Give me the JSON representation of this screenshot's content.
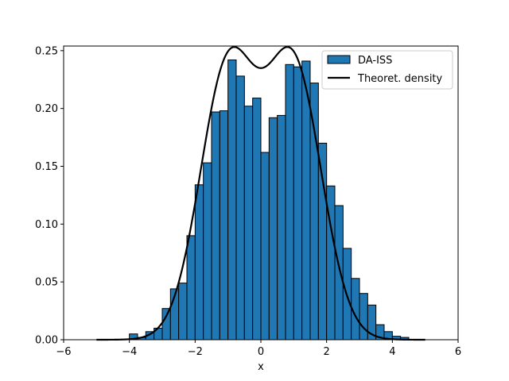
{
  "chart_data": {
    "type": "bar",
    "xlabel": "x",
    "ylabel": "",
    "xlim": [
      -6,
      6
    ],
    "ylim": [
      0,
      0.254
    ],
    "xticks": [
      -6,
      -4,
      -2,
      0,
      2,
      4,
      6
    ],
    "xtick_labels": [
      "−6",
      "−4",
      "−2",
      "0",
      "2",
      "4",
      "6"
    ],
    "yticks": [
      0.0,
      0.05,
      0.1,
      0.15,
      0.2,
      0.25
    ],
    "ytick_labels": [
      "0.00",
      "0.05",
      "0.10",
      "0.15",
      "0.20",
      "0.25"
    ],
    "grid": false,
    "legend": {
      "placement": "top-right",
      "entries": [
        "DA-ISS",
        "Theoret. density"
      ]
    },
    "series": [
      {
        "name": "DA-ISS",
        "kind": "histogram",
        "color": "#1f77b4",
        "edge_color": "#000000",
        "bins": [
          {
            "x0": -4.0,
            "x1": -3.75,
            "value": 0.005
          },
          {
            "x0": -3.75,
            "x1": -3.5,
            "value": 0.002
          },
          {
            "x0": -3.5,
            "x1": -3.25,
            "value": 0.007
          },
          {
            "x0": -3.25,
            "x1": -3.0,
            "value": 0.01
          },
          {
            "x0": -3.0,
            "x1": -2.75,
            "value": 0.027
          },
          {
            "x0": -2.75,
            "x1": -2.5,
            "value": 0.044
          },
          {
            "x0": -2.5,
            "x1": -2.25,
            "value": 0.049
          },
          {
            "x0": -2.25,
            "x1": -2.0,
            "value": 0.09
          },
          {
            "x0": -2.0,
            "x1": -1.75,
            "value": 0.134
          },
          {
            "x0": -1.75,
            "x1": -1.5,
            "value": 0.153
          },
          {
            "x0": -1.5,
            "x1": -1.25,
            "value": 0.197
          },
          {
            "x0": -1.25,
            "x1": -1.0,
            "value": 0.198
          },
          {
            "x0": -1.0,
            "x1": -0.75,
            "value": 0.242
          },
          {
            "x0": -0.75,
            "x1": -0.5,
            "value": 0.228
          },
          {
            "x0": -0.5,
            "x1": -0.25,
            "value": 0.202
          },
          {
            "x0": -0.25,
            "x1": 0.0,
            "value": 0.209
          },
          {
            "x0": 0.0,
            "x1": 0.25,
            "value": 0.162
          },
          {
            "x0": 0.25,
            "x1": 0.5,
            "value": 0.192
          },
          {
            "x0": 0.5,
            "x1": 0.75,
            "value": 0.194
          },
          {
            "x0": 0.75,
            "x1": 1.0,
            "value": 0.238
          },
          {
            "x0": 1.0,
            "x1": 1.25,
            "value": 0.236
          },
          {
            "x0": 1.25,
            "x1": 1.5,
            "value": 0.241
          },
          {
            "x0": 1.5,
            "x1": 1.75,
            "value": 0.222
          },
          {
            "x0": 1.75,
            "x1": 2.0,
            "value": 0.17
          },
          {
            "x0": 2.0,
            "x1": 2.25,
            "value": 0.133
          },
          {
            "x0": 2.25,
            "x1": 2.5,
            "value": 0.116
          },
          {
            "x0": 2.5,
            "x1": 2.75,
            "value": 0.079
          },
          {
            "x0": 2.75,
            "x1": 3.0,
            "value": 0.053
          },
          {
            "x0": 3.0,
            "x1": 3.25,
            "value": 0.04
          },
          {
            "x0": 3.25,
            "x1": 3.5,
            "value": 0.03
          },
          {
            "x0": 3.5,
            "x1": 3.75,
            "value": 0.013
          },
          {
            "x0": 3.75,
            "x1": 4.0,
            "value": 0.007
          },
          {
            "x0": 4.0,
            "x1": 4.25,
            "value": 0.003
          },
          {
            "x0": 4.25,
            "x1": 4.5,
            "value": 0.002
          }
        ]
      },
      {
        "name": "Theoret. density",
        "kind": "line",
        "color": "#000000",
        "formula": "0.5*N(x;-1,0.85) + 0.5*N(x;1,0.85)",
        "x_range": [
          -5,
          5
        ]
      }
    ]
  }
}
